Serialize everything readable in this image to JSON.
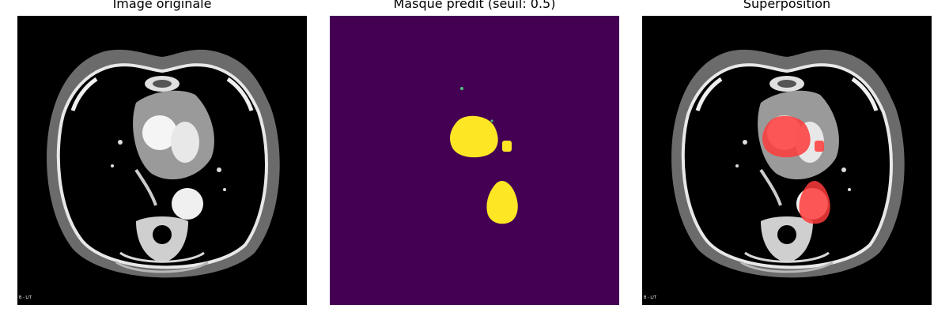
{
  "figure": {
    "panels": [
      {
        "title": "Image originale",
        "corner_text": "B - L/T"
      },
      {
        "title": "Masque prédit (seuil: 0.5)",
        "corner_text": ""
      },
      {
        "title": "Superposition",
        "corner_text": "B - L/T"
      }
    ],
    "colors": {
      "mask_background": "#440154",
      "mask_foreground": "#fde725",
      "overlay": "#ff3b3b",
      "scan_background": "#000000",
      "tissue": "#d0d0d0"
    },
    "threshold": 0.5
  }
}
